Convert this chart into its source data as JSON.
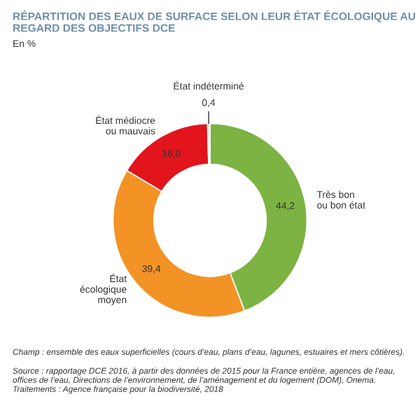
{
  "chart_data": {
    "type": "donut",
    "title": "RÉPARTITION DES EAUX DE SURFACE SELON LEUR ÉTAT ÉCOLOGIQUE AU REGARD DES OBJECTIFS DCE",
    "subtitle": "En %",
    "categories": [
      "Très bon\nou bon état",
      "État\nécologique\nmoyen",
      "État médiocre\nou mauvais",
      "État indéterminé"
    ],
    "values": [
      44.2,
      39.4,
      16.0,
      0.4
    ],
    "colors": [
      "#7cb342",
      "#f39325",
      "#e2141c",
      "#d9d9d9"
    ],
    "value_labels": [
      "44,2",
      "39,4",
      "16,0",
      "0,4"
    ],
    "annotations": [
      "Champ : ensemble des eaux superficielles (cours d’eau, plans d’eau, lagunes, estuaires et mers côtières).",
      "Source : rapportage DCE 2016, à partir des données de 2015 pour la France entière, agences de l’eau, offices de l’eau, Directions de l’environnement, de l’aménagement et du logement (DOM), Onema. Traitements : Agence française pour la biodiversité, 2018"
    ]
  }
}
